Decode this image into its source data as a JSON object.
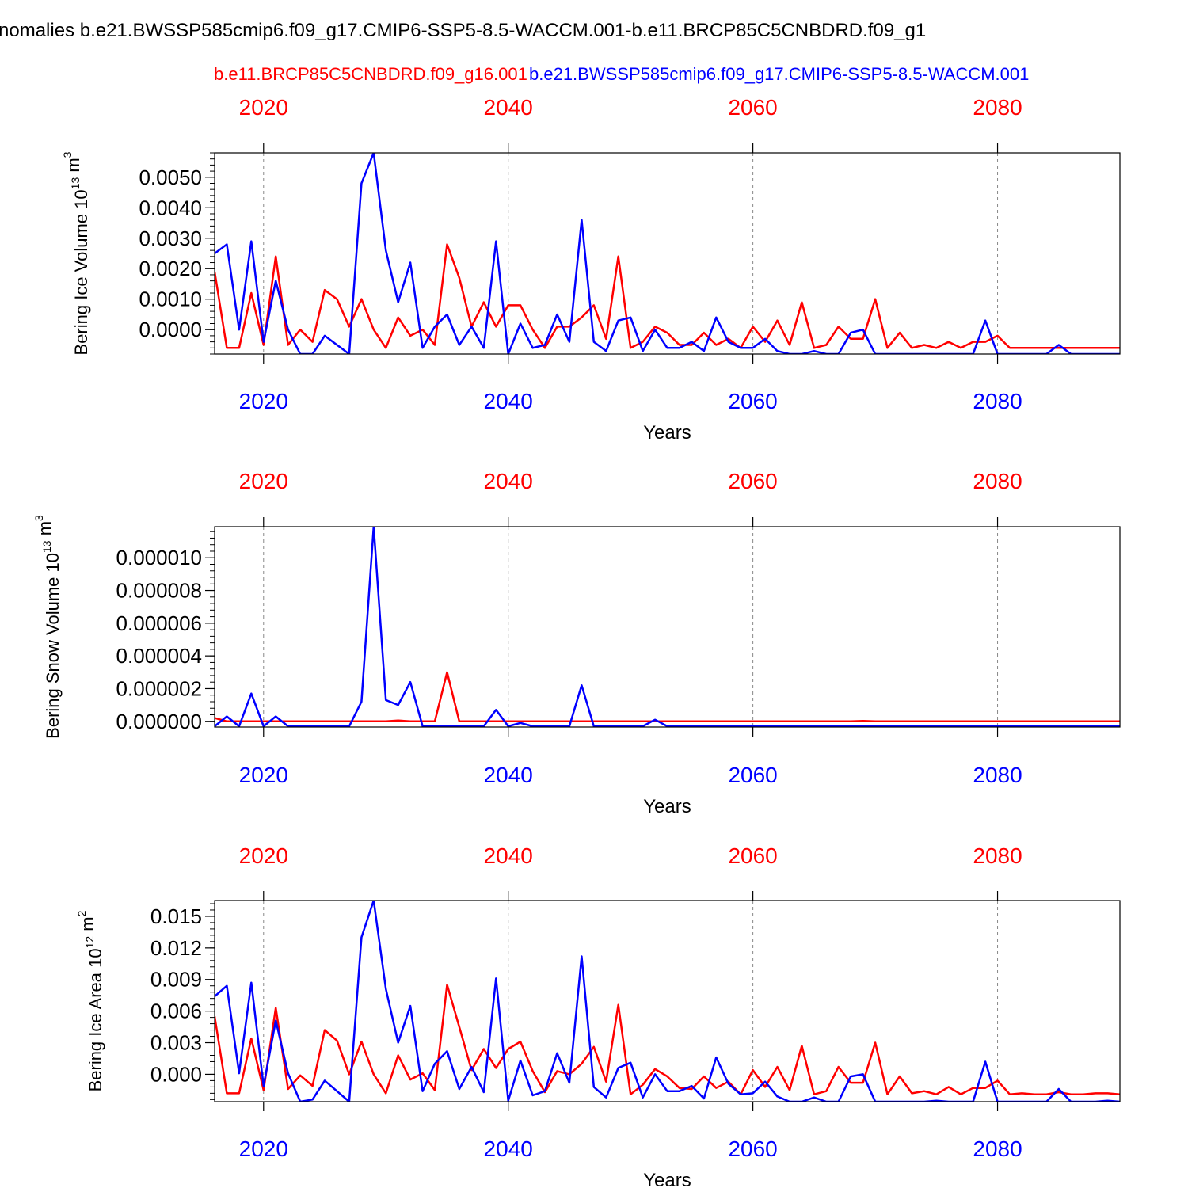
{
  "page": {
    "title": "nomalies b.e21.BWSSP585cmip6.f09_g17.CMIP6-SSP5-8.5-WACCM.001-b.e11.BRCP85C5CNBDRD.f09_g1",
    "legend_red": "b.e11.BRCP85C5CNBDRD.f09_g16.001",
    "legend_blue": "b.e21.BWSSP585cmip6.f09_g17.CMIP6-SSP5-8.5-WACCM.001",
    "colors": {
      "red_series": "#ff0000",
      "blue_series": "#0000ff",
      "axis": "#000000",
      "grid": "#888888"
    }
  },
  "chart_data": [
    {
      "type": "line",
      "ylabel": "Bering Ice Volume 10^13 m^3",
      "xlabel": "Years",
      "xlim": [
        2016,
        2090
      ],
      "ylim": [
        -0.0008,
        0.0058
      ],
      "yticks": [
        "0.0000",
        "0.0010",
        "0.0020",
        "0.0030",
        "0.0040",
        "0.0050"
      ],
      "ytick_values": [
        0.0,
        0.001,
        0.002,
        0.003,
        0.004,
        0.005
      ],
      "xticks": [
        2020,
        2040,
        2060,
        2080
      ],
      "grid": "vertical dashed at x ticks",
      "x": [
        2016,
        2017,
        2018,
        2019,
        2020,
        2021,
        2022,
        2023,
        2024,
        2025,
        2026,
        2027,
        2028,
        2029,
        2030,
        2031,
        2032,
        2033,
        2034,
        2035,
        2036,
        2037,
        2038,
        2039,
        2040,
        2041,
        2042,
        2043,
        2044,
        2045,
        2046,
        2047,
        2048,
        2049,
        2050,
        2051,
        2052,
        2053,
        2054,
        2055,
        2056,
        2057,
        2058,
        2059,
        2060,
        2061,
        2062,
        2063,
        2064,
        2065,
        2066,
        2067,
        2068,
        2069,
        2070,
        2071,
        2072,
        2073,
        2074,
        2075,
        2076,
        2077,
        2078,
        2079,
        2080,
        2081,
        2082,
        2083,
        2084,
        2085,
        2086,
        2087,
        2088,
        2089,
        2090
      ],
      "series": [
        {
          "name": "b.e11.BRCP85C5CNBDRD.f09_g16.001",
          "color": "#ff0000",
          "values": [
            0.0019,
            -0.0006,
            -0.0006,
            0.0012,
            -0.0005,
            0.0024,
            -0.0005,
            0.0,
            -0.0004,
            0.0013,
            0.001,
            0.0001,
            0.001,
            0.0,
            -0.0006,
            0.0004,
            -0.0002,
            0.0,
            -0.0005,
            0.0028,
            0.0017,
            0.0001,
            0.0009,
            0.0001,
            0.0008,
            0.0008,
            0.0,
            -0.0006,
            0.0001,
            0.0001,
            0.0004,
            0.0008,
            -0.0003,
            0.0024,
            -0.0006,
            -0.0004,
            0.0001,
            -0.0001,
            -0.0005,
            -0.0005,
            -0.0001,
            -0.0005,
            -0.0003,
            -0.0006,
            0.0001,
            -0.0004,
            0.0003,
            -0.0005,
            0.0009,
            -0.0006,
            -0.0005,
            0.0001,
            -0.0003,
            -0.0003,
            0.001,
            -0.0006,
            -0.0001,
            -0.0006,
            -0.0005,
            -0.0006,
            -0.0004,
            -0.0006,
            -0.0004,
            -0.0004,
            -0.0002,
            -0.0006,
            -0.0006,
            -0.0006,
            -0.0006,
            -0.0006,
            -0.0006,
            -0.0006,
            -0.0006,
            -0.0006,
            -0.0006
          ]
        },
        {
          "name": "b.e21.BWSSP585cmip6.f09_g17.CMIP6-SSP5-8.5-WACCM.001",
          "color": "#0000ff",
          "values": [
            0.0025,
            0.0028,
            0.0,
            0.0029,
            -0.0004,
            0.0016,
            0.0,
            -0.0008,
            -0.0008,
            -0.0002,
            -0.0005,
            -0.0008,
            0.0048,
            0.0058,
            0.0026,
            0.0009,
            0.0022,
            -0.0006,
            0.0001,
            0.0005,
            -0.0005,
            0.0001,
            -0.0006,
            0.0029,
            -0.0008,
            0.0002,
            -0.0006,
            -0.0005,
            0.0005,
            -0.0004,
            0.0036,
            -0.0004,
            -0.0007,
            0.0003,
            0.0004,
            -0.0007,
            0.0,
            -0.0006,
            -0.0006,
            -0.0004,
            -0.0007,
            0.0004,
            -0.0004,
            -0.0006,
            -0.0006,
            -0.0003,
            -0.0007,
            -0.0008,
            -0.0008,
            -0.0007,
            -0.0008,
            -0.0008,
            -0.0001,
            0.0,
            -0.0008,
            -0.0008,
            -0.0008,
            -0.0008,
            -0.0008,
            -0.0008,
            -0.0008,
            -0.0008,
            -0.0008,
            0.0003,
            -0.0008,
            -0.0008,
            -0.0008,
            -0.0008,
            -0.0008,
            -0.0005,
            -0.0008,
            -0.0008,
            -0.0008,
            -0.0008,
            -0.0008
          ]
        }
      ]
    },
    {
      "type": "line",
      "ylabel": "Bering Snow Volume 10^13 m^3",
      "xlabel": "Years",
      "xlim": [
        2016,
        2090
      ],
      "ylim": [
        -3.5e-07,
        1.19e-05
      ],
      "yticks": [
        "0.000000",
        "0.000002",
        "0.000004",
        "0.000006",
        "0.000008",
        "0.000010"
      ],
      "ytick_values": [
        0.0,
        2e-06,
        4e-06,
        6e-06,
        8e-06,
        1e-05
      ],
      "xticks": [
        2020,
        2040,
        2060,
        2080
      ],
      "grid": "vertical dashed at x ticks",
      "x": [
        2016,
        2017,
        2018,
        2019,
        2020,
        2021,
        2022,
        2023,
        2024,
        2025,
        2026,
        2027,
        2028,
        2029,
        2030,
        2031,
        2032,
        2033,
        2034,
        2035,
        2036,
        2037,
        2038,
        2039,
        2040,
        2041,
        2042,
        2043,
        2044,
        2045,
        2046,
        2047,
        2048,
        2049,
        2050,
        2051,
        2052,
        2053,
        2054,
        2055,
        2056,
        2057,
        2058,
        2059,
        2060,
        2061,
        2062,
        2063,
        2064,
        2065,
        2066,
        2067,
        2068,
        2069,
        2070,
        2071,
        2072,
        2073,
        2074,
        2075,
        2076,
        2077,
        2078,
        2079,
        2080,
        2081,
        2082,
        2083,
        2084,
        2085,
        2086,
        2087,
        2088,
        2089,
        2090
      ],
      "series": [
        {
          "name": "b.e11.BRCP85C5CNBDRD.f09_g16.001",
          "color": "#ff0000",
          "values": [
            2e-07,
            0.0,
            0.0,
            0.0,
            0.0,
            0.0,
            0.0,
            0.0,
            0.0,
            0.0,
            0.0,
            0.0,
            0.0,
            0.0,
            0.0,
            5e-08,
            0.0,
            0.0,
            0.0,
            3e-06,
            0.0,
            0.0,
            0.0,
            0.0,
            0.0,
            0.0,
            0.0,
            0.0,
            0.0,
            0.0,
            0.0,
            0.0,
            0.0,
            0.0,
            0.0,
            0.0,
            0.0,
            0.0,
            0.0,
            0.0,
            0.0,
            0.0,
            0.0,
            0.0,
            0.0,
            0.0,
            0.0,
            0.0,
            0.0,
            0.0,
            0.0,
            0.0,
            0.0,
            3e-08,
            0.0,
            0.0,
            0.0,
            0.0,
            0.0,
            0.0,
            0.0,
            0.0,
            0.0,
            0.0,
            0.0,
            0.0,
            0.0,
            0.0,
            0.0,
            0.0,
            0.0,
            0.0,
            0.0,
            0.0,
            0.0
          ]
        },
        {
          "name": "b.e21.BWSSP585cmip6.f09_g17.CMIP6-SSP5-8.5-WACCM.001",
          "color": "#0000ff",
          "values": [
            -3e-07,
            3e-07,
            -3e-07,
            1.7e-06,
            -3e-07,
            3e-07,
            -3e-07,
            -3e-07,
            -3e-07,
            -3e-07,
            -3e-07,
            -3e-07,
            1.2e-06,
            1.19e-05,
            1.3e-06,
            1e-06,
            2.4e-06,
            -3e-07,
            -3e-07,
            -3e-07,
            -3e-07,
            -3e-07,
            -3e-07,
            7e-07,
            -3e-07,
            -1e-07,
            -3e-07,
            -3e-07,
            -3e-07,
            -3e-07,
            2.2e-06,
            -3e-07,
            -3e-07,
            -3e-07,
            -3e-07,
            -3e-07,
            1e-07,
            -3e-07,
            -3e-07,
            -3e-07,
            -3e-07,
            -3e-07,
            -3e-07,
            -3e-07,
            -3e-07,
            -3e-07,
            -3e-07,
            -3e-07,
            -3e-07,
            -3e-07,
            -3e-07,
            -3e-07,
            -3e-07,
            -3e-07,
            -3e-07,
            -3e-07,
            -3e-07,
            -3e-07,
            -3e-07,
            -3e-07,
            -3e-07,
            -3e-07,
            -3e-07,
            -3e-07,
            -3e-07,
            -3e-07,
            -3e-07,
            -3e-07,
            -3e-07,
            -3e-07,
            -3e-07,
            -3e-07,
            -3e-07,
            -3e-07,
            -3e-07
          ]
        }
      ]
    },
    {
      "type": "line",
      "ylabel": "Bering Ice Area 10^12 m^2",
      "xlabel": "Years",
      "xlim": [
        2016,
        2090
      ],
      "ylim": [
        -0.0026,
        0.0165
      ],
      "yticks": [
        "0.000",
        "0.003",
        "0.006",
        "0.009",
        "0.012",
        "0.015"
      ],
      "ytick_values": [
        0.0,
        0.003,
        0.006,
        0.009,
        0.012,
        0.015
      ],
      "xticks": [
        2020,
        2040,
        2060,
        2080
      ],
      "grid": "vertical dashed at x ticks",
      "x": [
        2016,
        2017,
        2018,
        2019,
        2020,
        2021,
        2022,
        2023,
        2024,
        2025,
        2026,
        2027,
        2028,
        2029,
        2030,
        2031,
        2032,
        2033,
        2034,
        2035,
        2036,
        2037,
        2038,
        2039,
        2040,
        2041,
        2042,
        2043,
        2044,
        2045,
        2046,
        2047,
        2048,
        2049,
        2050,
        2051,
        2052,
        2053,
        2054,
        2055,
        2056,
        2057,
        2058,
        2059,
        2060,
        2061,
        2062,
        2063,
        2064,
        2065,
        2066,
        2067,
        2068,
        2069,
        2070,
        2071,
        2072,
        2073,
        2074,
        2075,
        2076,
        2077,
        2078,
        2079,
        2080,
        2081,
        2082,
        2083,
        2084,
        2085,
        2086,
        2087,
        2088,
        2089,
        2090
      ],
      "series": [
        {
          "name": "b.e11.BRCP85C5CNBDRD.f09_g16.001",
          "color": "#ff0000",
          "values": [
            0.0055,
            -0.0018,
            -0.0018,
            0.0034,
            -0.0015,
            0.0063,
            -0.0014,
            -0.0001,
            -0.0011,
            0.0042,
            0.0032,
            0.0,
            0.0031,
            0.0,
            -0.0018,
            0.0018,
            -0.0005,
            0.0001,
            -0.0015,
            0.0085,
            0.0045,
            0.0004,
            0.0024,
            0.0006,
            0.0024,
            0.0031,
            0.0003,
            -0.0017,
            0.0003,
            0.0,
            0.001,
            0.0026,
            -0.0007,
            0.0066,
            -0.0019,
            -0.001,
            0.0005,
            -0.0002,
            -0.0013,
            -0.0014,
            -0.0002,
            -0.0013,
            -0.0007,
            -0.0019,
            0.0004,
            -0.0012,
            0.0007,
            -0.0015,
            0.0027,
            -0.0019,
            -0.0016,
            0.0007,
            -0.0008,
            -0.0008,
            0.003,
            -0.0019,
            -0.0002,
            -0.0018,
            -0.0016,
            -0.0019,
            -0.0012,
            -0.0019,
            -0.0013,
            -0.0013,
            -0.0006,
            -0.0019,
            -0.0018,
            -0.0019,
            -0.0019,
            -0.0017,
            -0.0019,
            -0.0019,
            -0.0018,
            -0.0018,
            -0.0019
          ]
        },
        {
          "name": "b.e21.BWSSP585cmip6.f09_g17.CMIP6-SSP5-8.5-WACCM.001",
          "color": "#0000ff",
          "values": [
            0.0074,
            0.0084,
            0.0001,
            0.0087,
            -0.0011,
            0.0051,
            0.0001,
            -0.0026,
            -0.0024,
            -0.0006,
            -0.0016,
            -0.0026,
            0.013,
            0.0165,
            0.0081,
            0.003,
            0.0065,
            -0.0016,
            0.001,
            0.0022,
            -0.0014,
            0.0007,
            -0.0017,
            0.0091,
            -0.0025,
            0.0013,
            -0.002,
            -0.0016,
            0.002,
            -0.0008,
            0.0112,
            -0.0012,
            -0.0022,
            0.0006,
            0.0011,
            -0.0022,
            0.0,
            -0.0016,
            -0.0016,
            -0.0011,
            -0.0023,
            0.0016,
            -0.0009,
            -0.0019,
            -0.0018,
            -0.0007,
            -0.0021,
            -0.0026,
            -0.0026,
            -0.0022,
            -0.0026,
            -0.0026,
            -0.0002,
            0.0,
            -0.0026,
            -0.0026,
            -0.0026,
            -0.0026,
            -0.0026,
            -0.0025,
            -0.0026,
            -0.0026,
            -0.0026,
            0.0012,
            -0.0026,
            -0.0026,
            -0.0026,
            -0.0026,
            -0.0026,
            -0.0014,
            -0.0026,
            -0.0026,
            -0.0026,
            -0.0025,
            -0.0026
          ]
        }
      ]
    }
  ]
}
